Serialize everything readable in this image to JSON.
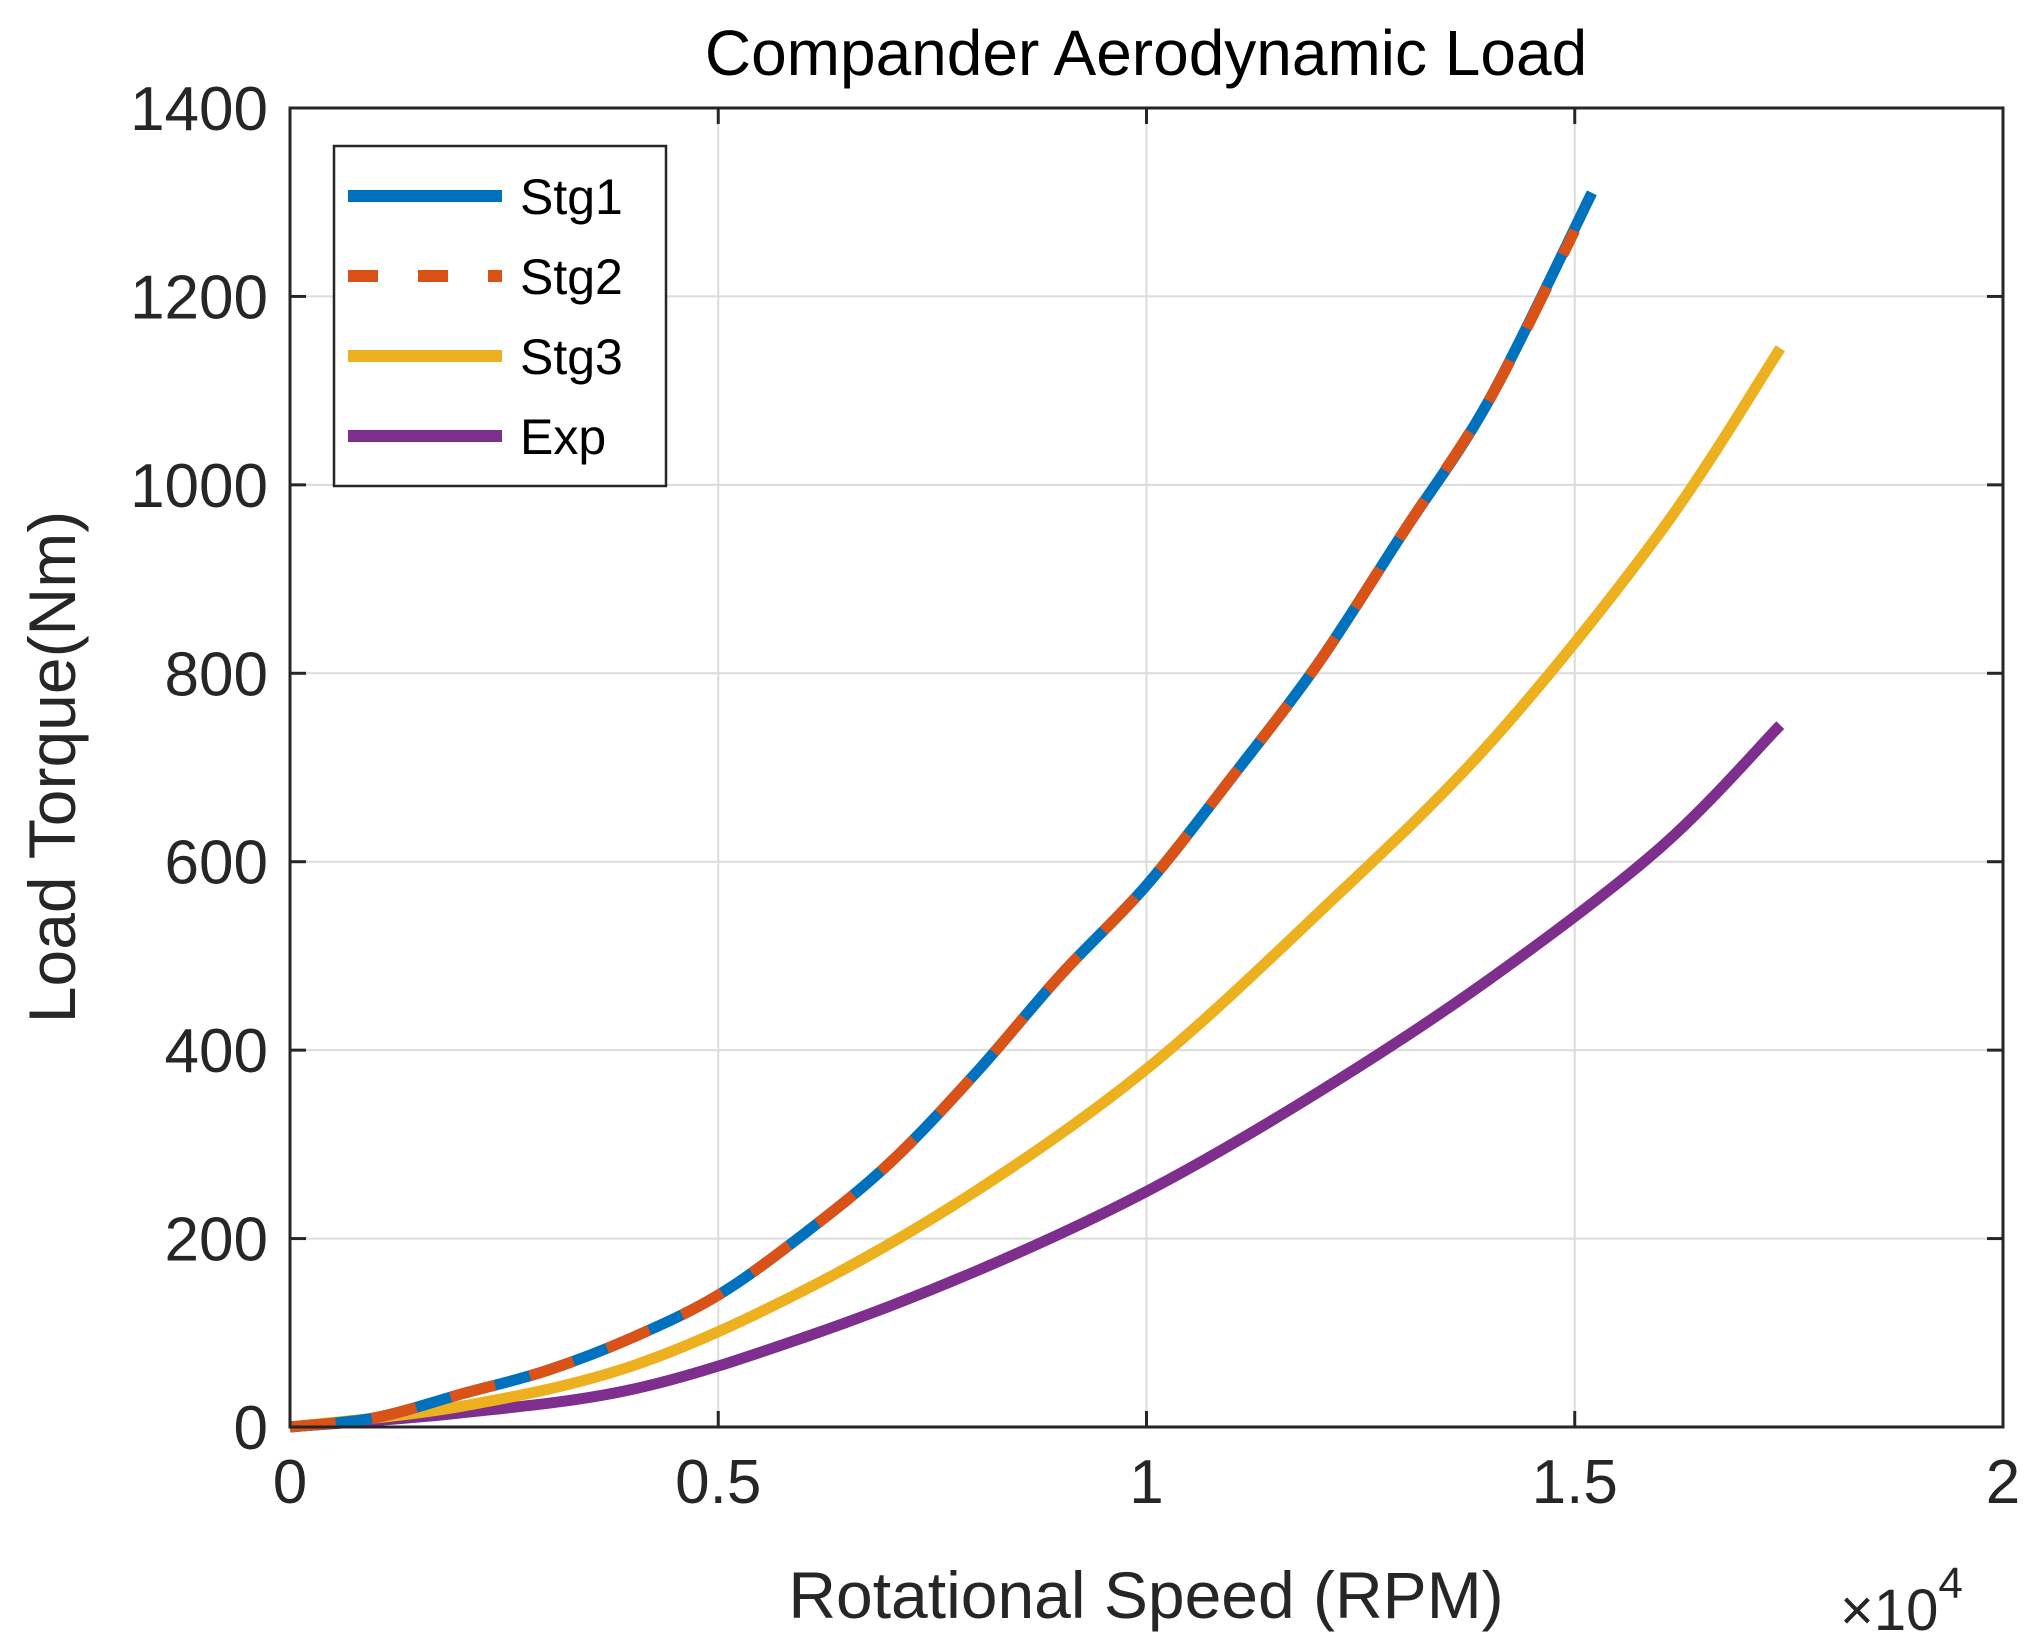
{
  "chart_data": {
    "type": "line",
    "title": "Compander Aerodynamic Load",
    "xlabel": "Rotational Speed (RPM)",
    "ylabel": "Load Torque(Nm)",
    "x_multiplier_prefix": "×10",
    "x_multiplier_exponent": "4",
    "xlim": [
      0,
      2
    ],
    "ylim": [
      0,
      1400
    ],
    "x_ticks": [
      0,
      0.5,
      1,
      1.5,
      2
    ],
    "x_tick_labels": [
      "0",
      "0.5",
      "1",
      "1.5",
      "2"
    ],
    "y_ticks": [
      0,
      200,
      400,
      600,
      800,
      1000,
      1200,
      1400
    ],
    "y_tick_labels": [
      "0",
      "200",
      "400",
      "600",
      "800",
      "1000",
      "1200",
      "1400"
    ],
    "grid": true,
    "legend_position": "top-left",
    "series": [
      {
        "name": "Stg1",
        "color": "#0072BD",
        "style": "solid",
        "x": [
          0,
          0.1,
          0.2,
          0.3,
          0.4,
          0.5,
          0.6,
          0.7,
          0.8,
          0.9,
          1.0,
          1.1,
          1.2,
          1.3,
          1.4,
          1.52
        ],
        "y": [
          0,
          10,
          35,
          60,
          95,
          140,
          205,
          280,
          375,
          480,
          575,
          690,
          810,
          950,
          1090,
          1310
        ]
      },
      {
        "name": "Stg2",
        "color": "#D95319",
        "style": "dashed",
        "x": [
          0,
          0.1,
          0.2,
          0.3,
          0.4,
          0.5,
          0.6,
          0.7,
          0.8,
          0.9,
          1.0,
          1.1,
          1.2,
          1.3,
          1.4,
          1.5
        ],
        "y": [
          0,
          10,
          35,
          60,
          95,
          140,
          205,
          280,
          375,
          480,
          575,
          690,
          810,
          950,
          1090,
          1270
        ]
      },
      {
        "name": "Stg3",
        "color": "#EDB120",
        "style": "solid",
        "x": [
          0,
          0.2,
          0.4,
          0.6,
          0.8,
          1.0,
          1.2,
          1.4,
          1.6,
          1.74
        ],
        "y": [
          0,
          22,
          65,
          145,
          250,
          380,
          545,
          725,
          950,
          1145
        ]
      },
      {
        "name": "Exp",
        "color": "#7E2F8E",
        "style": "solid",
        "x": [
          0,
          0.2,
          0.4,
          0.6,
          0.8,
          1.0,
          1.2,
          1.4,
          1.6,
          1.74
        ],
        "y": [
          0,
          15,
          40,
          95,
          165,
          250,
          355,
          475,
          615,
          745
        ]
      }
    ]
  }
}
